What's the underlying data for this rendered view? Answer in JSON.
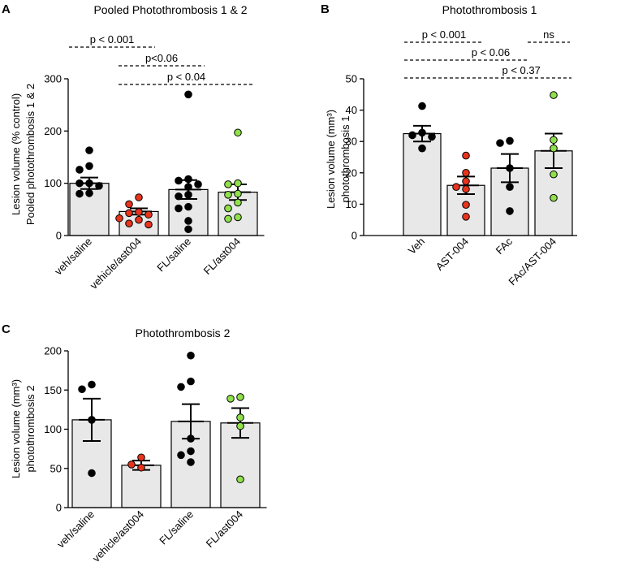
{
  "figure": {
    "colors": {
      "bar_fill": "#e8e8e8",
      "bar_stroke": "#000000",
      "veh_points": "#000000",
      "ast_points": "#e8341c",
      "fl_points": "#000000",
      "combo_points": "#8fe04a"
    }
  },
  "chart_data": [
    {
      "panel": "A",
      "type": "bar",
      "title": "Pooled Photothrombosis 1 & 2",
      "ylabel_lines": [
        "Lesion volume (% control)",
        "Pooled photothrombosis 1 & 2"
      ],
      "ylim": [
        0,
        300
      ],
      "yticks": [
        0,
        100,
        200,
        300
      ],
      "categories": [
        "veh/saline",
        "vehicle/ast004",
        "FL/saline",
        "FL/ast004"
      ],
      "means": [
        100,
        46,
        88,
        83
      ],
      "sem": [
        11,
        6,
        18,
        15
      ],
      "point_colors": [
        "black",
        "red",
        "black",
        "green"
      ],
      "points": [
        [
          163,
          133,
          126,
          100,
          100,
          95,
          81,
          80
        ],
        [
          73,
          60,
          45,
          43,
          40,
          33,
          30,
          23,
          21
        ],
        [
          270,
          108,
          105,
          98,
          93,
          78,
          75,
          55,
          52,
          28,
          12
        ],
        [
          197,
          100,
          98,
          80,
          78,
          63,
          52,
          35,
          32
        ]
      ],
      "comparisons": [
        {
          "label": "p < 0.001",
          "from": 0,
          "to": 1,
          "level": 1
        },
        {
          "label": "p<0.06",
          "from": 1,
          "to": 2,
          "level": 2
        },
        {
          "label": "p < 0.04",
          "from": 1,
          "to": 3,
          "level": 3
        }
      ]
    },
    {
      "panel": "B",
      "type": "bar",
      "title": "Photothrombosis 1",
      "ylabel_lines": [
        "Lesion volume (mm³)",
        "photothrombosis 1"
      ],
      "ylim": [
        0,
        50
      ],
      "yticks": [
        0,
        10,
        20,
        30,
        40,
        50
      ],
      "categories": [
        "Veh",
        "AST-004",
        "FAc",
        "FAc/AST-004"
      ],
      "means": [
        32.5,
        16,
        21.5,
        27
      ],
      "sem": [
        2.5,
        2.8,
        4.5,
        5.5
      ],
      "point_colors": [
        "black",
        "red",
        "black",
        "green"
      ],
      "points": [
        [
          41.3,
          32.8,
          32,
          31.5,
          27.8
        ],
        [
          25.5,
          20,
          17.3,
          15.5,
          14.8,
          9.8,
          6
        ],
        [
          30.2,
          29.5,
          21.5,
          15.5,
          7.8
        ],
        [
          44.8,
          30.5,
          27.8,
          19.5,
          12
        ]
      ],
      "comparisons": [
        {
          "label": "p < 0.001",
          "from": 0,
          "to": 1,
          "level": 1
        },
        {
          "label": "ns",
          "from": 2,
          "to": 3,
          "level": 1
        },
        {
          "label": "p < 0.06",
          "from": 0,
          "to": 2,
          "level": 2
        },
        {
          "label": "p < 0.37",
          "from": 0,
          "to": 3,
          "level": 3
        }
      ]
    },
    {
      "panel": "C",
      "type": "bar",
      "title": "Photothrombosis 2",
      "ylabel_lines": [
        "Lesion volume (mm³)",
        "photothrombosis 2"
      ],
      "ylim": [
        0,
        200
      ],
      "yticks": [
        0,
        50,
        100,
        150,
        200
      ],
      "categories": [
        "veh/saline",
        "vehicle/ast004",
        "FL/saline",
        "FL/ast004"
      ],
      "means": [
        112,
        54,
        110,
        108
      ],
      "sem": [
        27,
        6,
        22,
        19
      ],
      "point_colors": [
        "black",
        "red",
        "black",
        "green"
      ],
      "points": [
        [
          157,
          151,
          112,
          44
        ],
        [
          64,
          55,
          51
        ],
        [
          194,
          161,
          154,
          88,
          72,
          67,
          58
        ],
        [
          141,
          139,
          115,
          104,
          36
        ]
      ],
      "comparisons": []
    }
  ]
}
